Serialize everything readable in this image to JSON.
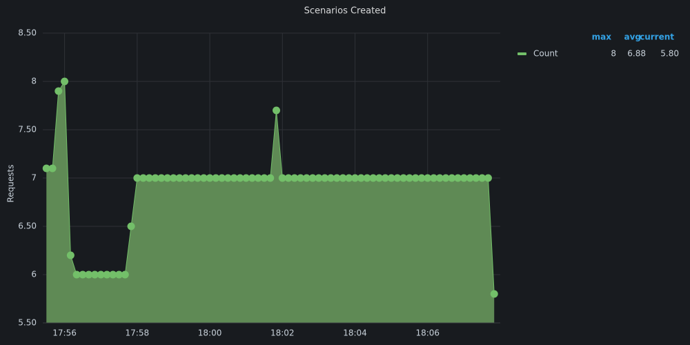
{
  "chart_data": {
    "type": "area",
    "title": "Scenarios Created",
    "y_label": "Requests",
    "x": [
      "17:55:30",
      "17:55:40",
      "17:55:50",
      "17:56:00",
      "17:56:10",
      "17:56:20",
      "17:56:30",
      "17:56:40",
      "17:56:50",
      "17:57:00",
      "17:57:10",
      "17:57:20",
      "17:57:30",
      "17:57:40",
      "17:57:50",
      "17:58:00",
      "17:58:10",
      "17:58:20",
      "17:58:30",
      "17:58:40",
      "17:58:50",
      "17:59:00",
      "17:59:10",
      "17:59:20",
      "17:59:30",
      "17:59:40",
      "17:59:50",
      "18:00:00",
      "18:00:10",
      "18:00:20",
      "18:00:30",
      "18:00:40",
      "18:00:50",
      "18:01:00",
      "18:01:10",
      "18:01:20",
      "18:01:30",
      "18:01:40",
      "18:01:50",
      "18:02:00",
      "18:02:10",
      "18:02:20",
      "18:02:30",
      "18:02:40",
      "18:02:50",
      "18:03:00",
      "18:03:10",
      "18:03:20",
      "18:03:30",
      "18:03:40",
      "18:03:50",
      "18:04:00",
      "18:04:10",
      "18:04:20",
      "18:04:30",
      "18:04:40",
      "18:04:50",
      "18:05:00",
      "18:05:10",
      "18:05:20",
      "18:05:30",
      "18:05:40",
      "18:05:50",
      "18:06:00",
      "18:06:10",
      "18:06:20",
      "18:06:30",
      "18:06:40",
      "18:06:50",
      "18:07:00",
      "18:07:10",
      "18:07:20",
      "18:07:30",
      "18:07:40",
      "18:07:50"
    ],
    "series": [
      {
        "name": "Count",
        "color": "#73bf69",
        "fill": "#5f8a55",
        "values": [
          7.1,
          7.1,
          7.9,
          8,
          6.2,
          6,
          6,
          6,
          6,
          6,
          6,
          6,
          6,
          6,
          6.5,
          7,
          7,
          7,
          7,
          7,
          7,
          7,
          7,
          7,
          7,
          7,
          7,
          7,
          7,
          7,
          7,
          7,
          7,
          7,
          7,
          7,
          7,
          7,
          7.7,
          7,
          7,
          7,
          7,
          7,
          7,
          7,
          7,
          7,
          7,
          7,
          7,
          7,
          7,
          7,
          7,
          7,
          7,
          7,
          7,
          7,
          7,
          7,
          7,
          7,
          7,
          7,
          7,
          7,
          7,
          7,
          7,
          7,
          7,
          7,
          5.8
        ]
      }
    ],
    "xlim": [
      "17:55:24",
      "18:08:00"
    ],
    "xticks": [
      "17:56",
      "17:58",
      "18:00",
      "18:02",
      "18:04",
      "18:06"
    ],
    "ylim": [
      5.5,
      8.5
    ],
    "yticks": [
      {
        "value": 5.5,
        "label": "5.50"
      },
      6,
      {
        "value": 6.5,
        "label": "6.50"
      },
      7,
      {
        "value": 7.5,
        "label": "7.50"
      },
      8,
      {
        "value": 8.5,
        "label": "8.50"
      }
    ],
    "grid": true,
    "legend": {
      "position": "right",
      "columns": [
        "max",
        "avg",
        "current"
      ],
      "stats": [
        8,
        6.88,
        {
          "value": 5.8,
          "label": "5.80"
        }
      ]
    }
  }
}
